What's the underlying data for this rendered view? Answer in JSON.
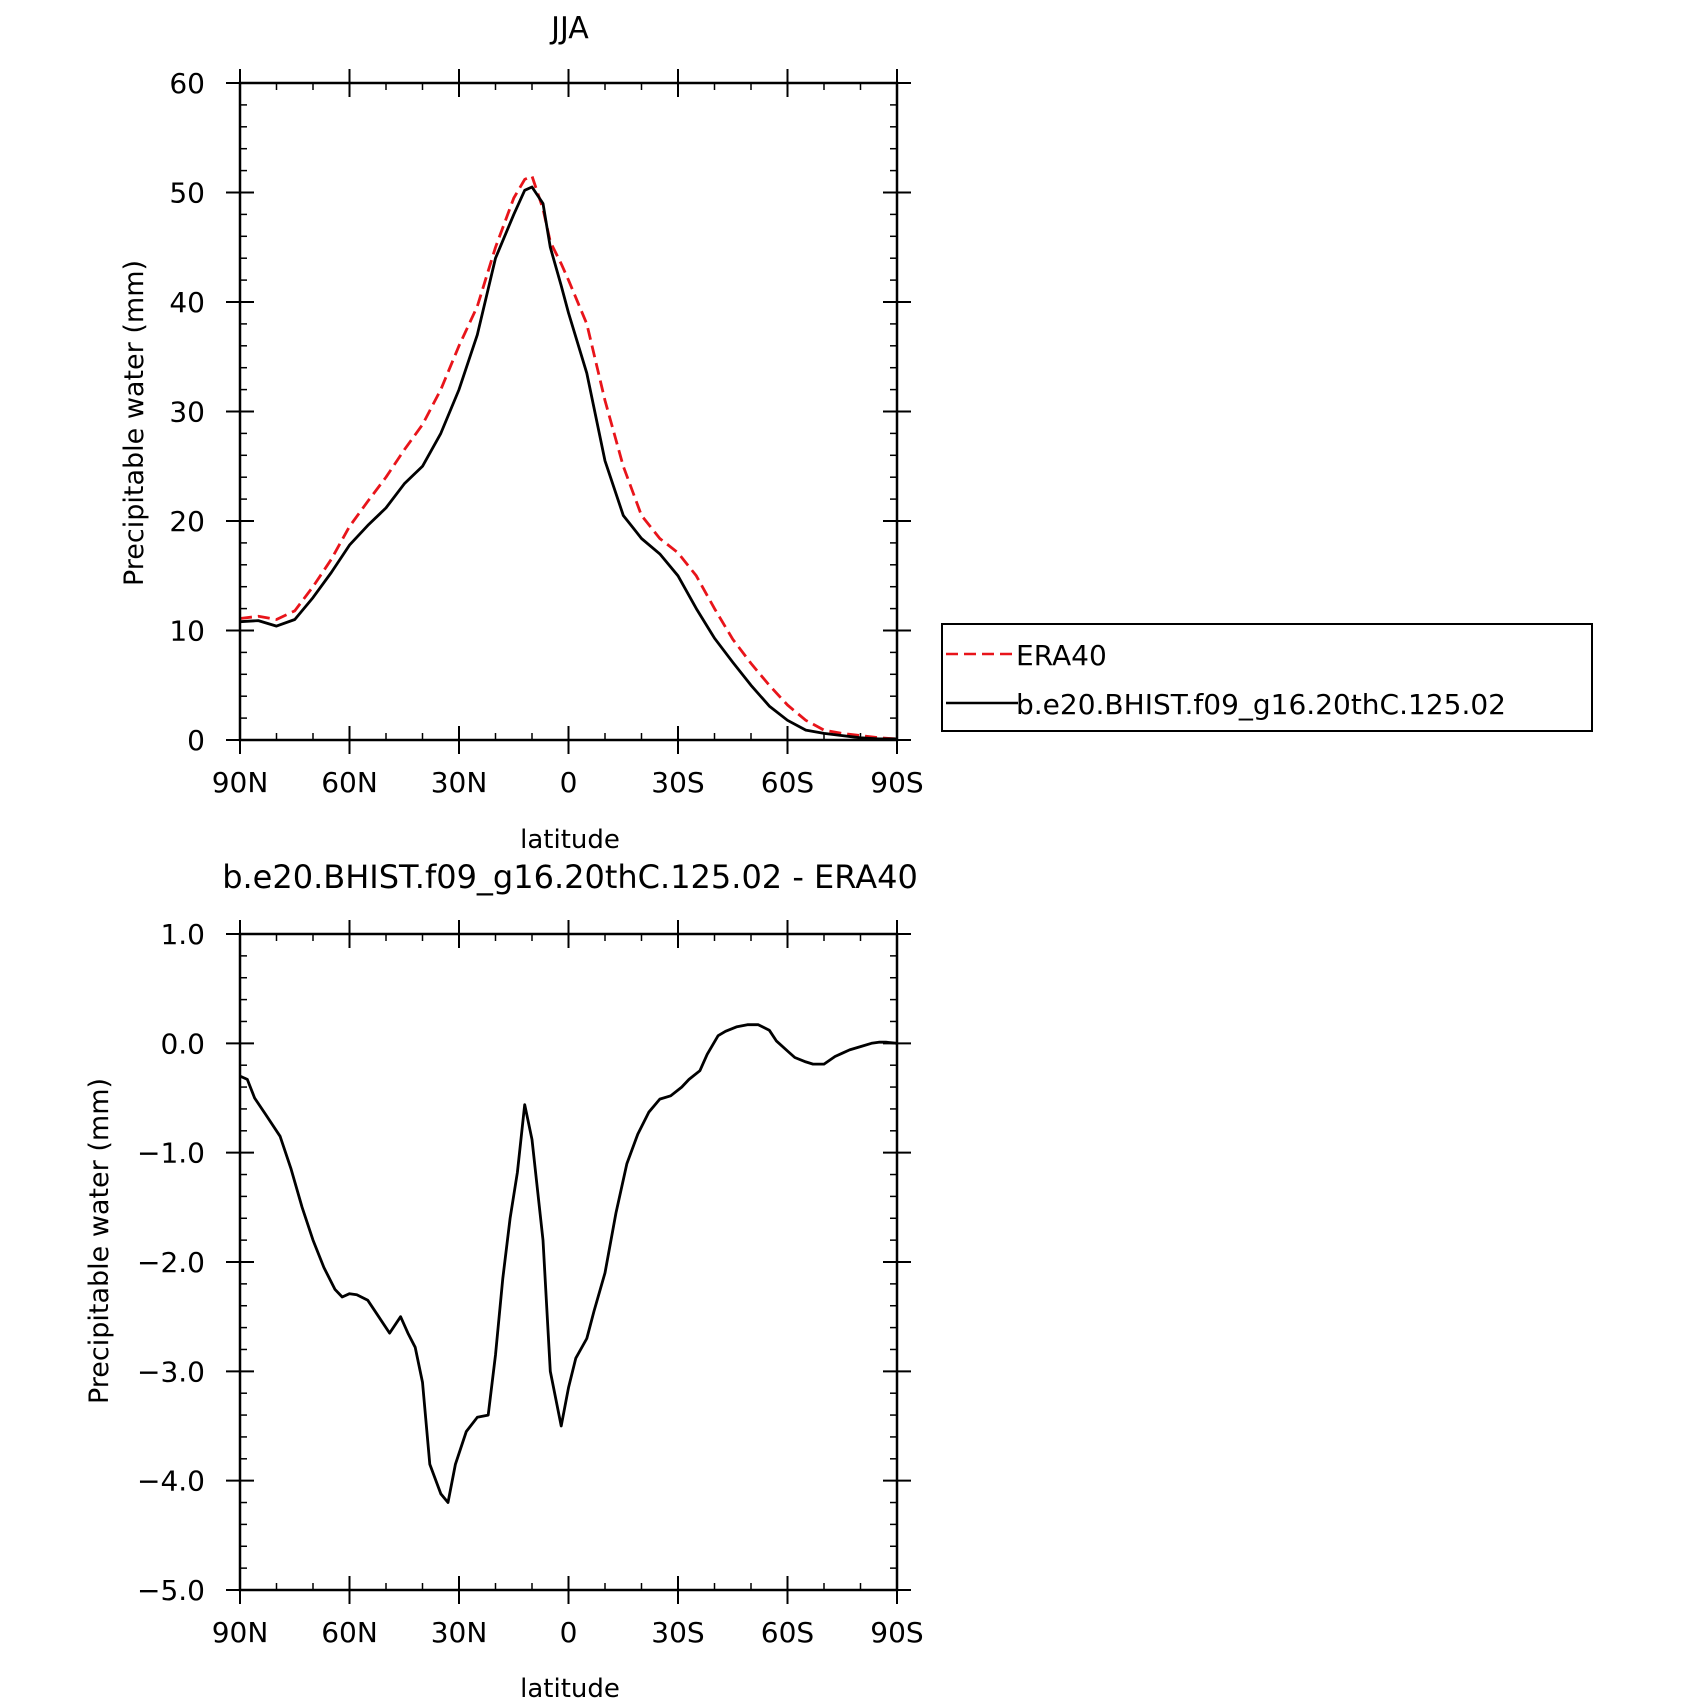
{
  "chart_data": [
    {
      "type": "line",
      "title": "JJA",
      "xlabel": "latitude",
      "ylabel": "Precipitable water (mm)",
      "xlim": [
        90,
        -90
      ],
      "ylim": [
        0,
        60
      ],
      "xticks": [
        90,
        60,
        30,
        0,
        -30,
        -60,
        -90
      ],
      "xtick_labels": [
        "90N",
        "60N",
        "30N",
        "0",
        "30S",
        "60S",
        "90S"
      ],
      "yticks": [
        0,
        10,
        20,
        30,
        40,
        50,
        60
      ],
      "ytick_labels": [
        "0",
        "10",
        "20",
        "30",
        "40",
        "50",
        "60"
      ],
      "legend": {
        "placement": "right"
      },
      "series": [
        {
          "name": "ERA40",
          "color": "#e8141a",
          "style": "dashed",
          "x": [
            90,
            85,
            80,
            75,
            70,
            65,
            60,
            55,
            50,
            45,
            40,
            35,
            30,
            25,
            20,
            15,
            12,
            10,
            7,
            5,
            2,
            0,
            -5,
            -10,
            -15,
            -20,
            -25,
            -30,
            -35,
            -40,
            -45,
            -50,
            -55,
            -60,
            -65,
            -70,
            -75,
            -80,
            -85,
            -90
          ],
          "values": [
            11.1,
            11.3,
            11.0,
            11.8,
            14.0,
            16.5,
            19.5,
            21.8,
            24.0,
            26.5,
            28.8,
            32.0,
            36.0,
            39.6,
            45.0,
            49.5,
            51.2,
            51.5,
            48.5,
            45.5,
            43.5,
            42.0,
            38.0,
            31.0,
            25.0,
            20.5,
            18.4,
            17.1,
            15.0,
            12.0,
            9.2,
            7.0,
            5.0,
            3.2,
            1.8,
            0.9,
            0.6,
            0.4,
            0.2,
            0.1
          ]
        },
        {
          "name": "b.e20.BHIST.f09_g16.20thC.125.02",
          "color": "#000000",
          "style": "solid",
          "x": [
            90,
            85,
            80,
            75,
            70,
            65,
            60,
            55,
            50,
            45,
            40,
            35,
            30,
            25,
            20,
            15,
            12,
            10,
            7,
            5,
            2,
            0,
            -5,
            -10,
            -15,
            -20,
            -25,
            -30,
            -35,
            -40,
            -45,
            -50,
            -55,
            -60,
            -65,
            -70,
            -75,
            -80,
            -85,
            -90
          ],
          "values": [
            10.8,
            10.9,
            10.4,
            11.0,
            13.0,
            15.3,
            17.8,
            19.6,
            21.2,
            23.4,
            25.0,
            28.0,
            32.0,
            37.0,
            44.0,
            48.0,
            50.2,
            50.5,
            49.0,
            45.0,
            41.5,
            39.0,
            33.5,
            25.5,
            20.5,
            18.4,
            17.0,
            15.0,
            12.0,
            9.3,
            7.1,
            5.0,
            3.1,
            1.8,
            0.9,
            0.6,
            0.4,
            0.2,
            0.1,
            0.1
          ]
        }
      ]
    },
    {
      "type": "line",
      "title": "b.e20.BHIST.f09_g16.20thC.125.02 - ERA40",
      "xlabel": "latitude",
      "ylabel": "Precipitable water (mm)",
      "xlim": [
        90,
        -90
      ],
      "ylim": [
        -5.0,
        1.0
      ],
      "xticks": [
        90,
        60,
        30,
        0,
        -30,
        -60,
        -90
      ],
      "xtick_labels": [
        "90N",
        "60N",
        "30N",
        "0",
        "30S",
        "60S",
        "90S"
      ],
      "yticks": [
        1.0,
        0.0,
        -1.0,
        -2.0,
        -3.0,
        -4.0,
        -5.0
      ],
      "ytick_labels": [
        "1.0",
        "0.0",
        "−1.0",
        "−2.0",
        "−3.0",
        "−4.0",
        "−5.0"
      ],
      "series": [
        {
          "color": "#000000",
          "style": "solid",
          "x": [
            90,
            88,
            86,
            83,
            79,
            76,
            73,
            70,
            67,
            64,
            62,
            60,
            58,
            55,
            52,
            49,
            46,
            44,
            42,
            40,
            38,
            35,
            33,
            31,
            28,
            25,
            22,
            20,
            18,
            16,
            14,
            12,
            10,
            7,
            5,
            2,
            0,
            -2,
            -5,
            -7,
            -10,
            -13,
            -16,
            -19,
            -22,
            -25,
            -28,
            -31,
            -33,
            -36,
            -38,
            -41,
            -43,
            -46,
            -49,
            -52,
            -55,
            -57,
            -60,
            -62,
            -65,
            -67,
            -70,
            -73,
            -75,
            -77,
            -80,
            -83,
            -85,
            -87,
            -90
          ],
          "values": [
            -0.3,
            -0.33,
            -0.5,
            -0.65,
            -0.85,
            -1.15,
            -1.5,
            -1.8,
            -2.05,
            -2.25,
            -2.32,
            -2.29,
            -2.3,
            -2.35,
            -2.5,
            -2.65,
            -2.5,
            -2.65,
            -2.78,
            -3.1,
            -3.85,
            -4.12,
            -4.2,
            -3.85,
            -3.55,
            -3.42,
            -3.4,
            -2.85,
            -2.15,
            -1.6,
            -1.18,
            -0.56,
            -0.88,
            -1.8,
            -3.0,
            -3.5,
            -3.15,
            -2.88,
            -2.7,
            -2.45,
            -2.1,
            -1.55,
            -1.1,
            -0.83,
            -0.63,
            -0.51,
            -0.48,
            -0.4,
            -0.33,
            -0.25,
            -0.1,
            0.07,
            0.11,
            0.15,
            0.17,
            0.17,
            0.12,
            0.02,
            -0.07,
            -0.13,
            -0.17,
            -0.19,
            -0.19,
            -0.12,
            -0.09,
            -0.06,
            -0.03,
            0.0,
            0.01,
            0.01,
            0.0
          ]
        }
      ]
    }
  ]
}
